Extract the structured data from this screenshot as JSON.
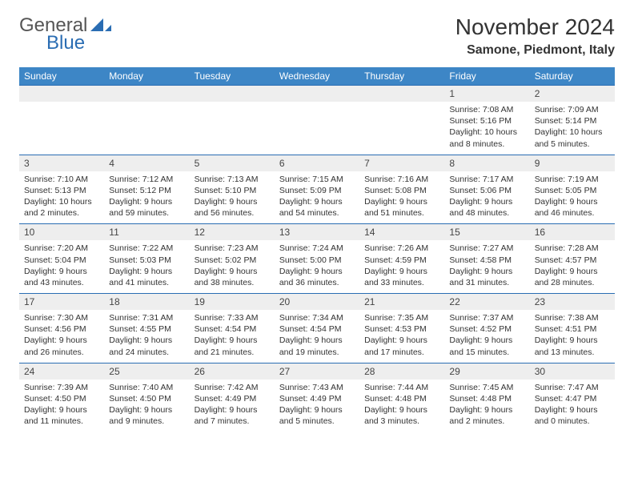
{
  "brand": {
    "part1": "General",
    "part2": "Blue"
  },
  "title": "November 2024",
  "location": "Samone, Piedmont, Italy",
  "colors": {
    "header_bg": "#3d86c6",
    "border": "#2a6db3",
    "daynum_bg": "#eeeeee",
    "text": "#333333",
    "logo_gray": "#555555",
    "logo_blue": "#2a6db3"
  },
  "fonts": {
    "title_size": 28,
    "location_size": 16,
    "header_size": 12,
    "cell_size": 10.5
  },
  "days_of_week": [
    "Sunday",
    "Monday",
    "Tuesday",
    "Wednesday",
    "Thursday",
    "Friday",
    "Saturday"
  ],
  "weeks": [
    [
      null,
      null,
      null,
      null,
      null,
      {
        "n": "1",
        "sunrise": "7:08 AM",
        "sunset": "5:16 PM",
        "daylight": "10 hours and 8 minutes."
      },
      {
        "n": "2",
        "sunrise": "7:09 AM",
        "sunset": "5:14 PM",
        "daylight": "10 hours and 5 minutes."
      }
    ],
    [
      {
        "n": "3",
        "sunrise": "7:10 AM",
        "sunset": "5:13 PM",
        "daylight": "10 hours and 2 minutes."
      },
      {
        "n": "4",
        "sunrise": "7:12 AM",
        "sunset": "5:12 PM",
        "daylight": "9 hours and 59 minutes."
      },
      {
        "n": "5",
        "sunrise": "7:13 AM",
        "sunset": "5:10 PM",
        "daylight": "9 hours and 56 minutes."
      },
      {
        "n": "6",
        "sunrise": "7:15 AM",
        "sunset": "5:09 PM",
        "daylight": "9 hours and 54 minutes."
      },
      {
        "n": "7",
        "sunrise": "7:16 AM",
        "sunset": "5:08 PM",
        "daylight": "9 hours and 51 minutes."
      },
      {
        "n": "8",
        "sunrise": "7:17 AM",
        "sunset": "5:06 PM",
        "daylight": "9 hours and 48 minutes."
      },
      {
        "n": "9",
        "sunrise": "7:19 AM",
        "sunset": "5:05 PM",
        "daylight": "9 hours and 46 minutes."
      }
    ],
    [
      {
        "n": "10",
        "sunrise": "7:20 AM",
        "sunset": "5:04 PM",
        "daylight": "9 hours and 43 minutes."
      },
      {
        "n": "11",
        "sunrise": "7:22 AM",
        "sunset": "5:03 PM",
        "daylight": "9 hours and 41 minutes."
      },
      {
        "n": "12",
        "sunrise": "7:23 AM",
        "sunset": "5:02 PM",
        "daylight": "9 hours and 38 minutes."
      },
      {
        "n": "13",
        "sunrise": "7:24 AM",
        "sunset": "5:00 PM",
        "daylight": "9 hours and 36 minutes."
      },
      {
        "n": "14",
        "sunrise": "7:26 AM",
        "sunset": "4:59 PM",
        "daylight": "9 hours and 33 minutes."
      },
      {
        "n": "15",
        "sunrise": "7:27 AM",
        "sunset": "4:58 PM",
        "daylight": "9 hours and 31 minutes."
      },
      {
        "n": "16",
        "sunrise": "7:28 AM",
        "sunset": "4:57 PM",
        "daylight": "9 hours and 28 minutes."
      }
    ],
    [
      {
        "n": "17",
        "sunrise": "7:30 AM",
        "sunset": "4:56 PM",
        "daylight": "9 hours and 26 minutes."
      },
      {
        "n": "18",
        "sunrise": "7:31 AM",
        "sunset": "4:55 PM",
        "daylight": "9 hours and 24 minutes."
      },
      {
        "n": "19",
        "sunrise": "7:33 AM",
        "sunset": "4:54 PM",
        "daylight": "9 hours and 21 minutes."
      },
      {
        "n": "20",
        "sunrise": "7:34 AM",
        "sunset": "4:54 PM",
        "daylight": "9 hours and 19 minutes."
      },
      {
        "n": "21",
        "sunrise": "7:35 AM",
        "sunset": "4:53 PM",
        "daylight": "9 hours and 17 minutes."
      },
      {
        "n": "22",
        "sunrise": "7:37 AM",
        "sunset": "4:52 PM",
        "daylight": "9 hours and 15 minutes."
      },
      {
        "n": "23",
        "sunrise": "7:38 AM",
        "sunset": "4:51 PM",
        "daylight": "9 hours and 13 minutes."
      }
    ],
    [
      {
        "n": "24",
        "sunrise": "7:39 AM",
        "sunset": "4:50 PM",
        "daylight": "9 hours and 11 minutes."
      },
      {
        "n": "25",
        "sunrise": "7:40 AM",
        "sunset": "4:50 PM",
        "daylight": "9 hours and 9 minutes."
      },
      {
        "n": "26",
        "sunrise": "7:42 AM",
        "sunset": "4:49 PM",
        "daylight": "9 hours and 7 minutes."
      },
      {
        "n": "27",
        "sunrise": "7:43 AM",
        "sunset": "4:49 PM",
        "daylight": "9 hours and 5 minutes."
      },
      {
        "n": "28",
        "sunrise": "7:44 AM",
        "sunset": "4:48 PM",
        "daylight": "9 hours and 3 minutes."
      },
      {
        "n": "29",
        "sunrise": "7:45 AM",
        "sunset": "4:48 PM",
        "daylight": "9 hours and 2 minutes."
      },
      {
        "n": "30",
        "sunrise": "7:47 AM",
        "sunset": "4:47 PM",
        "daylight": "9 hours and 0 minutes."
      }
    ]
  ],
  "labels": {
    "sunrise": "Sunrise:",
    "sunset": "Sunset:",
    "daylight": "Daylight:"
  }
}
